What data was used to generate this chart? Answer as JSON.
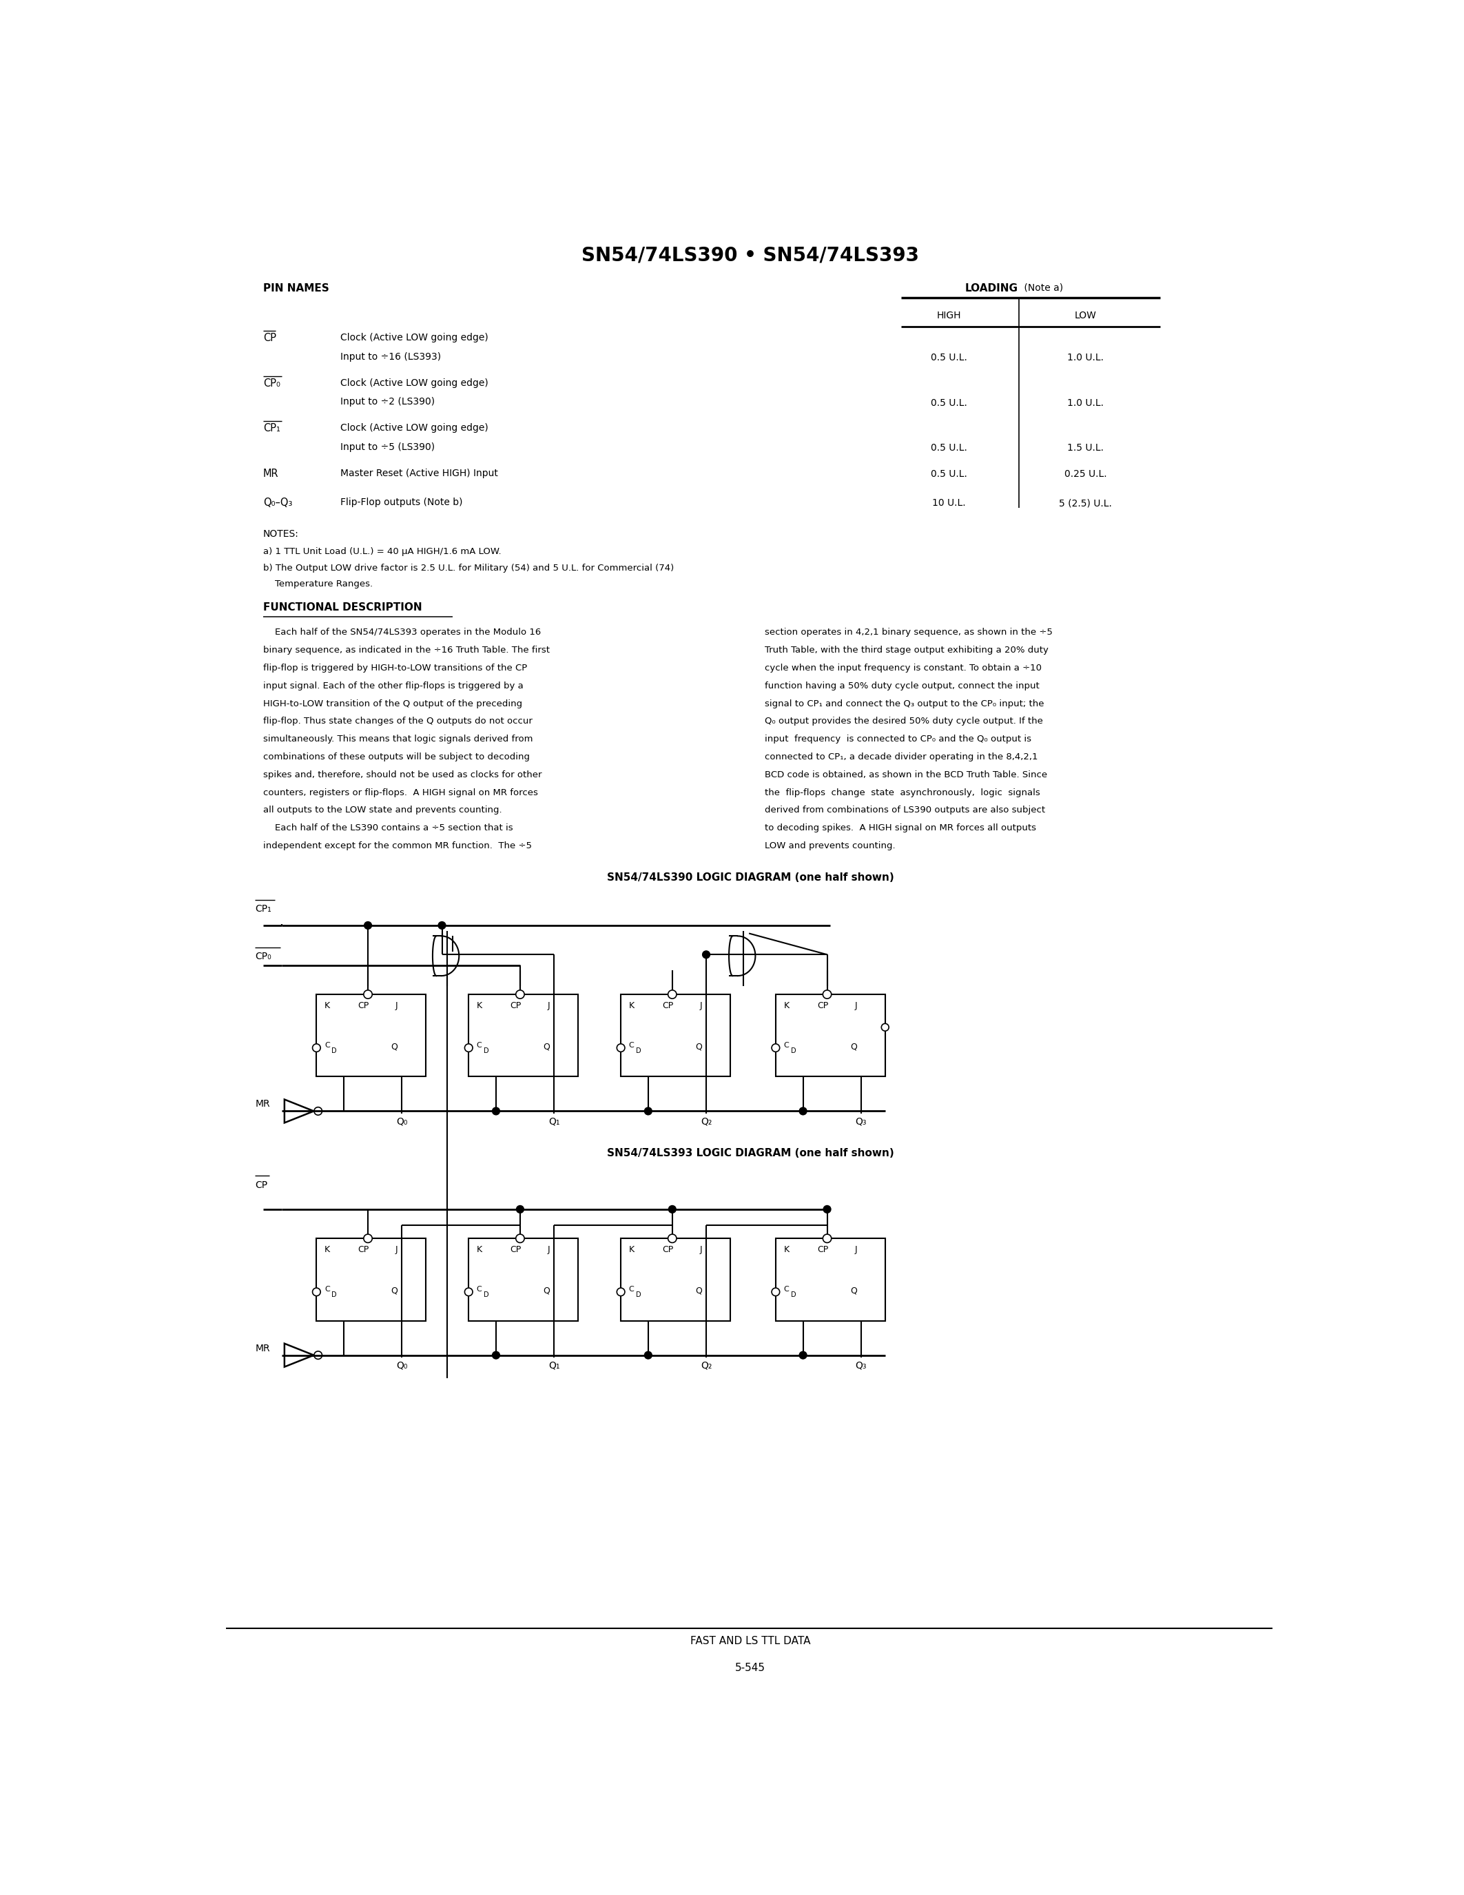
{
  "title": "SN54/74LS390 • SN54/74LS393",
  "background_color": "#ffffff",
  "text_color": "#000000",
  "pin_names_header": "PIN NAMES",
  "loading_header": "LOADING",
  "loading_note": "(Note a)",
  "high_col": "HIGH",
  "low_col": "LOW",
  "notes_header": "NOTES:",
  "note_a": "a) 1 TTL Unit Load (U.L.) = 40 μA HIGH/1.6 mA LOW.",
  "note_b1": "b) The Output LOW drive factor is 2.5 U.L. for Military (54) and 5 U.L. for Commercial (74)",
  "note_b2": "    Temperature Ranges.",
  "func_desc_header": "FUNCTIONAL DESCRIPTION",
  "func_desc_col1": [
    "    Each half of the SN54/74LS393 operates in the Modulo 16",
    "binary sequence, as indicated in the ÷16 Truth Table. The first",
    "flip-flop is triggered by HIGH-to-LOW transitions of the CP",
    "input signal. Each of the other flip-flops is triggered by a",
    "HIGH-to-LOW transition of the Q output of the preceding",
    "flip-flop. Thus state changes of the Q outputs do not occur",
    "simultaneously. This means that logic signals derived from",
    "combinations of these outputs will be subject to decoding",
    "spikes and, therefore, should not be used as clocks for other",
    "counters, registers or flip-flops.  A HIGH signal on MR forces",
    "all outputs to the LOW state and prevents counting.",
    "    Each half of the LS390 contains a ÷5 section that is",
    "independent except for the common MR function.  The ÷5"
  ],
  "func_desc_col2": [
    "section operates in 4,2,1 binary sequence, as shown in the ÷5",
    "Truth Table, with the third stage output exhibiting a 20% duty",
    "cycle when the input frequency is constant. To obtain a ÷10",
    "function having a 50% duty cycle output, connect the input",
    "signal to CP₁ and connect the Q₃ output to the CP₀ input; the",
    "Q₀ output provides the desired 50% duty cycle output. If the",
    "input  frequency  is connected to CP₀ and the Q₀ output is",
    "connected to CP₁, a decade divider operating in the 8,4,2,1",
    "BCD code is obtained, as shown in the BCD Truth Table. Since",
    "the  flip-flops  change  state  asynchronously,  logic  signals",
    "derived from combinations of LS390 outputs are also subject",
    "to decoding spikes.  A HIGH signal on MR forces all outputs",
    "LOW and prevents counting."
  ],
  "diagram1_title": "SN54/74LS390 LOGIC DIAGRAM (one half shown)",
  "diagram2_title": "SN54/74LS393 LOGIC DIAGRAM (one half shown)",
  "footer_text": "FAST AND LS TTL DATA",
  "footer_page": "5-545"
}
